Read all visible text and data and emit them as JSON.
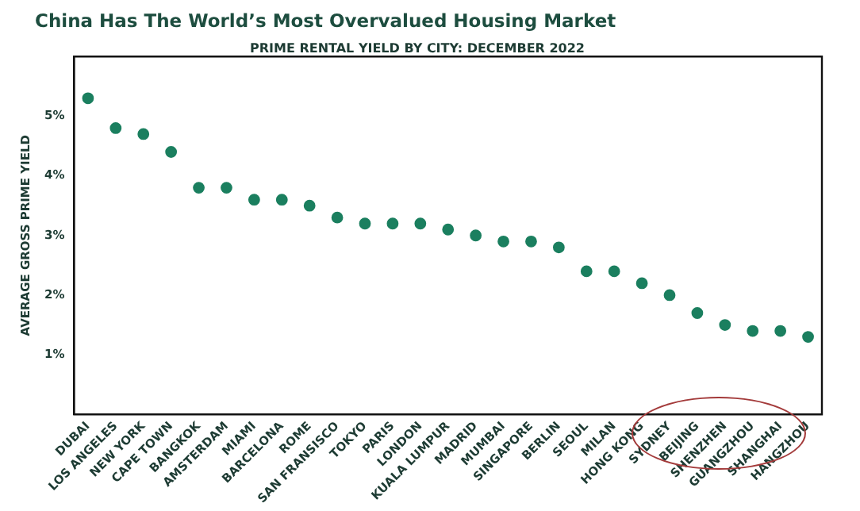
{
  "chart_data": {
    "type": "scatter",
    "title": "China Has The World’s Most Overvalued Housing Market",
    "subtitle": "PRIME RENTAL YIELD BY CITY: DECEMBER 2022",
    "ylabel": "AVERAGE GROSS PRIME YIELD",
    "categories": [
      "DUBAI",
      "LOS ANGELES",
      "NEW YORK",
      "CAPE TOWN",
      "BANGKOK",
      "AMSTERDAM",
      "MIAMI",
      "BARCELONA",
      "ROME",
      "SAN FRANSISCO",
      "TOKYO",
      "PARIS",
      "LONDON",
      "KUALA LUMPUR",
      "MADRID",
      "MUMBAI",
      "SINGAPORE",
      "BERLIN",
      "SEOUL",
      "MILAN",
      "HONG KONG",
      "SYDNEY",
      "BEIJING",
      "SHENZHEN",
      "GUANGZHOU",
      "SHANGHAI",
      "HANGZHOU"
    ],
    "values": [
      5.3,
      4.8,
      4.7,
      4.4,
      3.8,
      3.8,
      3.6,
      3.6,
      3.5,
      3.3,
      3.2,
      3.2,
      3.2,
      3.1,
      3.0,
      2.9,
      2.9,
      2.8,
      2.4,
      2.4,
      2.2,
      2.0,
      1.7,
      1.5,
      1.4,
      1.4,
      1.3
    ],
    "color": "#1b7f5f",
    "marker": "circle",
    "legend": false,
    "grid": false,
    "ylim": [
      0,
      6
    ],
    "yticks": [
      {
        "value": 1,
        "label": "1%"
      },
      {
        "value": 2,
        "label": "2%"
      },
      {
        "value": 3,
        "label": "3%"
      },
      {
        "value": 4,
        "label": "4%"
      },
      {
        "value": 5,
        "label": "5%"
      }
    ]
  }
}
